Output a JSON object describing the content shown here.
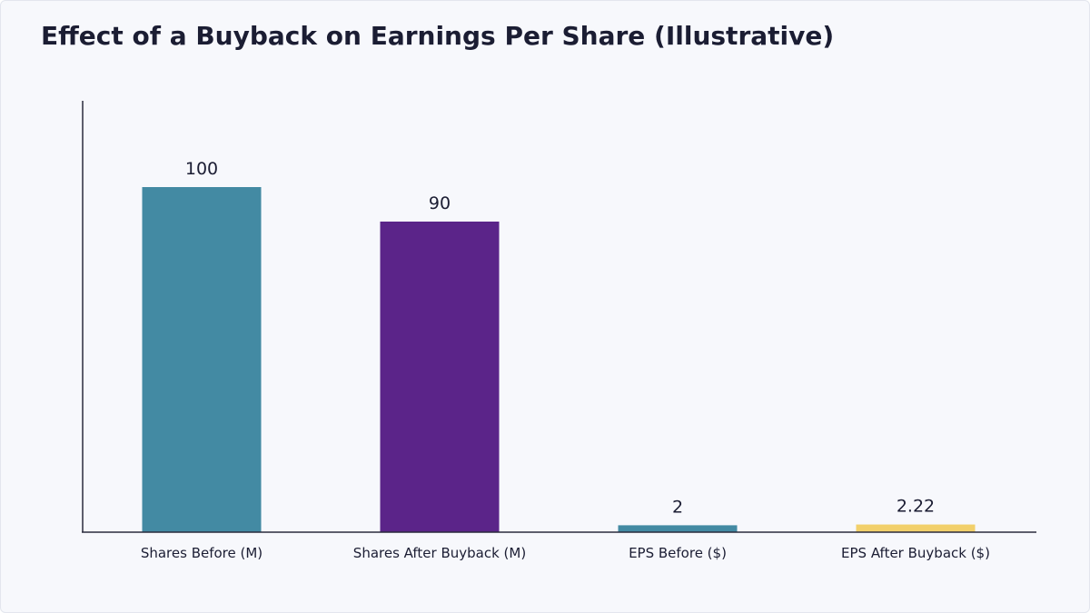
{
  "chart_data": {
    "type": "bar",
    "title": "Effect of a Buyback on Earnings Per Share (Illustrative)",
    "xlabel": "",
    "ylabel": "",
    "categories": [
      "Shares Before (M)",
      "Shares After Buyback (M)",
      "EPS Before ($)",
      "EPS After Buyback ($)"
    ],
    "values": [
      100,
      90,
      2,
      2.22
    ],
    "value_labels": [
      "100",
      "90",
      "2",
      "2.22"
    ],
    "bar_colors": [
      "#438aa3",
      "#5b2489",
      "#438aa3",
      "#f2d06b"
    ],
    "ylim": [
      0,
      125
    ],
    "grid": false,
    "legend": "none"
  }
}
